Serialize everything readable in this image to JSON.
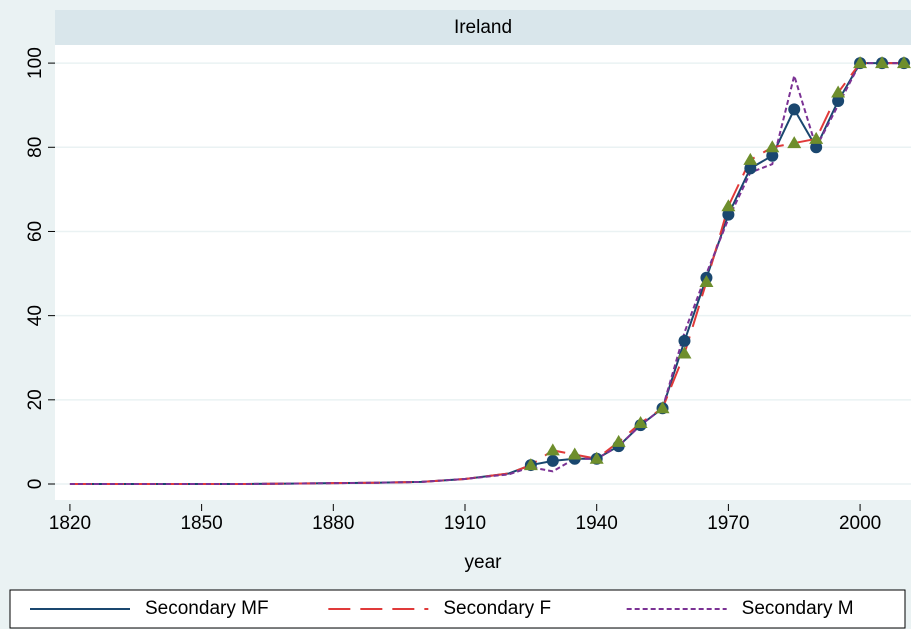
{
  "chart_data": {
    "type": "line",
    "title": "Ireland",
    "xlabel": "year",
    "x": [
      1820,
      1830,
      1840,
      1850,
      1860,
      1870,
      1880,
      1890,
      1900,
      1910,
      1920,
      1925,
      1930,
      1935,
      1940,
      1945,
      1950,
      1955,
      1960,
      1965,
      1970,
      1975,
      1980,
      1985,
      1990,
      1995,
      2000,
      2005,
      2010
    ],
    "marker_from": 1925,
    "series": [
      {
        "name": "Secondary MF",
        "color": "#1a476f",
        "dash": "solid",
        "marker": "circle",
        "values": [
          0,
          0,
          0,
          0,
          0,
          0.1,
          0.2,
          0.3,
          0.5,
          1.2,
          2.5,
          4.5,
          5.5,
          6,
          6,
          9,
          14,
          18,
          34,
          49,
          64,
          75,
          78,
          89,
          80,
          91,
          100,
          100,
          100
        ]
      },
      {
        "name": "Secondary F",
        "color": "#e03a3a",
        "dash": "long",
        "marker": "triangle",
        "marker_color": "#6e8e2c",
        "values": [
          0,
          0,
          0,
          0,
          0,
          0.1,
          0.2,
          0.3,
          0.5,
          1.2,
          2.5,
          4.5,
          8,
          7,
          6,
          10,
          14.5,
          18,
          31,
          48,
          66,
          77,
          80,
          81,
          82,
          93,
          100,
          100,
          100
        ]
      },
      {
        "name": "Secondary M",
        "color": "#7b3294",
        "dash": "short",
        "marker": null,
        "values": [
          0,
          0,
          0,
          0,
          0,
          0.1,
          0.2,
          0.3,
          0.5,
          1.2,
          2.3,
          4,
          3,
          6,
          6,
          9,
          14,
          18,
          36,
          50,
          63,
          74,
          76,
          97,
          80,
          90,
          100,
          100,
          100
        ]
      }
    ],
    "xlim": [
      1816.6,
      2011.6
    ],
    "xticks": [
      1820,
      1850,
      1880,
      1910,
      1940,
      1970,
      2000
    ],
    "ylim": [
      -3.8,
      104.3
    ],
    "yticks": [
      0,
      20,
      40,
      60,
      80,
      100
    ],
    "grid": true
  }
}
